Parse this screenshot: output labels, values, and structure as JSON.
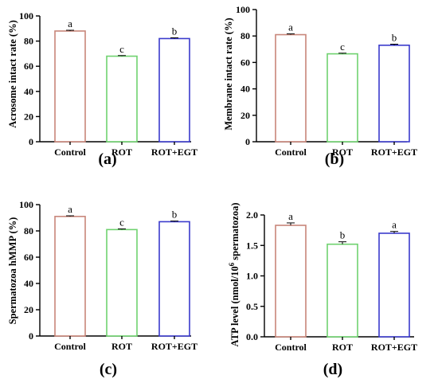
{
  "chart_data": [
    {
      "type": "bar",
      "panel_label": "(a)",
      "ylabel": "Acrosome intact rate (%)",
      "categories": [
        "Control",
        "ROT",
        "ROT+EGT"
      ],
      "values": [
        88,
        68,
        82
      ],
      "errors": [
        0.6,
        0.5,
        0.6
      ],
      "significance": [
        "a",
        "c",
        "b"
      ],
      "ylim": [
        0,
        100
      ],
      "yticks": [
        "0",
        "20",
        "40",
        "60",
        "80",
        "100"
      ],
      "bar_colors": [
        "#c8867a",
        "#6fd26f",
        "#3a3acc"
      ]
    },
    {
      "type": "bar",
      "panel_label": "(b)",
      "ylabel": "Membrane intact rate (%)",
      "categories": [
        "Control",
        "ROT",
        "ROT+EGT"
      ],
      "values": [
        81,
        66.5,
        73
      ],
      "errors": [
        0.6,
        0.5,
        0.8
      ],
      "significance": [
        "a",
        "c",
        "b"
      ],
      "ylim": [
        0,
        100
      ],
      "yticks": [
        "0",
        "20",
        "40",
        "60",
        "80",
        "100"
      ],
      "bar_colors": [
        "#c8867a",
        "#6fd26f",
        "#3a3acc"
      ]
    },
    {
      "type": "bar",
      "panel_label": "(c)",
      "ylabel": "Spermatozoa hMMP (%)",
      "categories": [
        "Control",
        "ROT",
        "ROT+EGT"
      ],
      "values": [
        91,
        81,
        87
      ],
      "errors": [
        0.5,
        0.5,
        0.5
      ],
      "significance": [
        "a",
        "c",
        "b"
      ],
      "ylim": [
        0,
        100
      ],
      "yticks": [
        "0",
        "20",
        "40",
        "60",
        "80",
        "100"
      ],
      "bar_colors": [
        "#c8867a",
        "#6fd26f",
        "#3a3acc"
      ]
    },
    {
      "type": "bar",
      "panel_label": "(d)",
      "ylabel": "ATP level (nmol/10",
      "ylabel_sup": "6",
      "ylabel_tail": " spermatozoa)",
      "categories": [
        "Control",
        "ROT",
        "ROT+EGT"
      ],
      "values": [
        1.83,
        1.52,
        1.7
      ],
      "errors": [
        0.04,
        0.04,
        0.03
      ],
      "significance": [
        "a",
        "b",
        "a"
      ],
      "ylim": [
        0,
        2.0
      ],
      "yticks": [
        "0.0",
        "0.5",
        "1.0",
        "1.5",
        "2.0"
      ],
      "bar_colors": [
        "#c8867a",
        "#6fd26f",
        "#3a3acc"
      ]
    }
  ]
}
